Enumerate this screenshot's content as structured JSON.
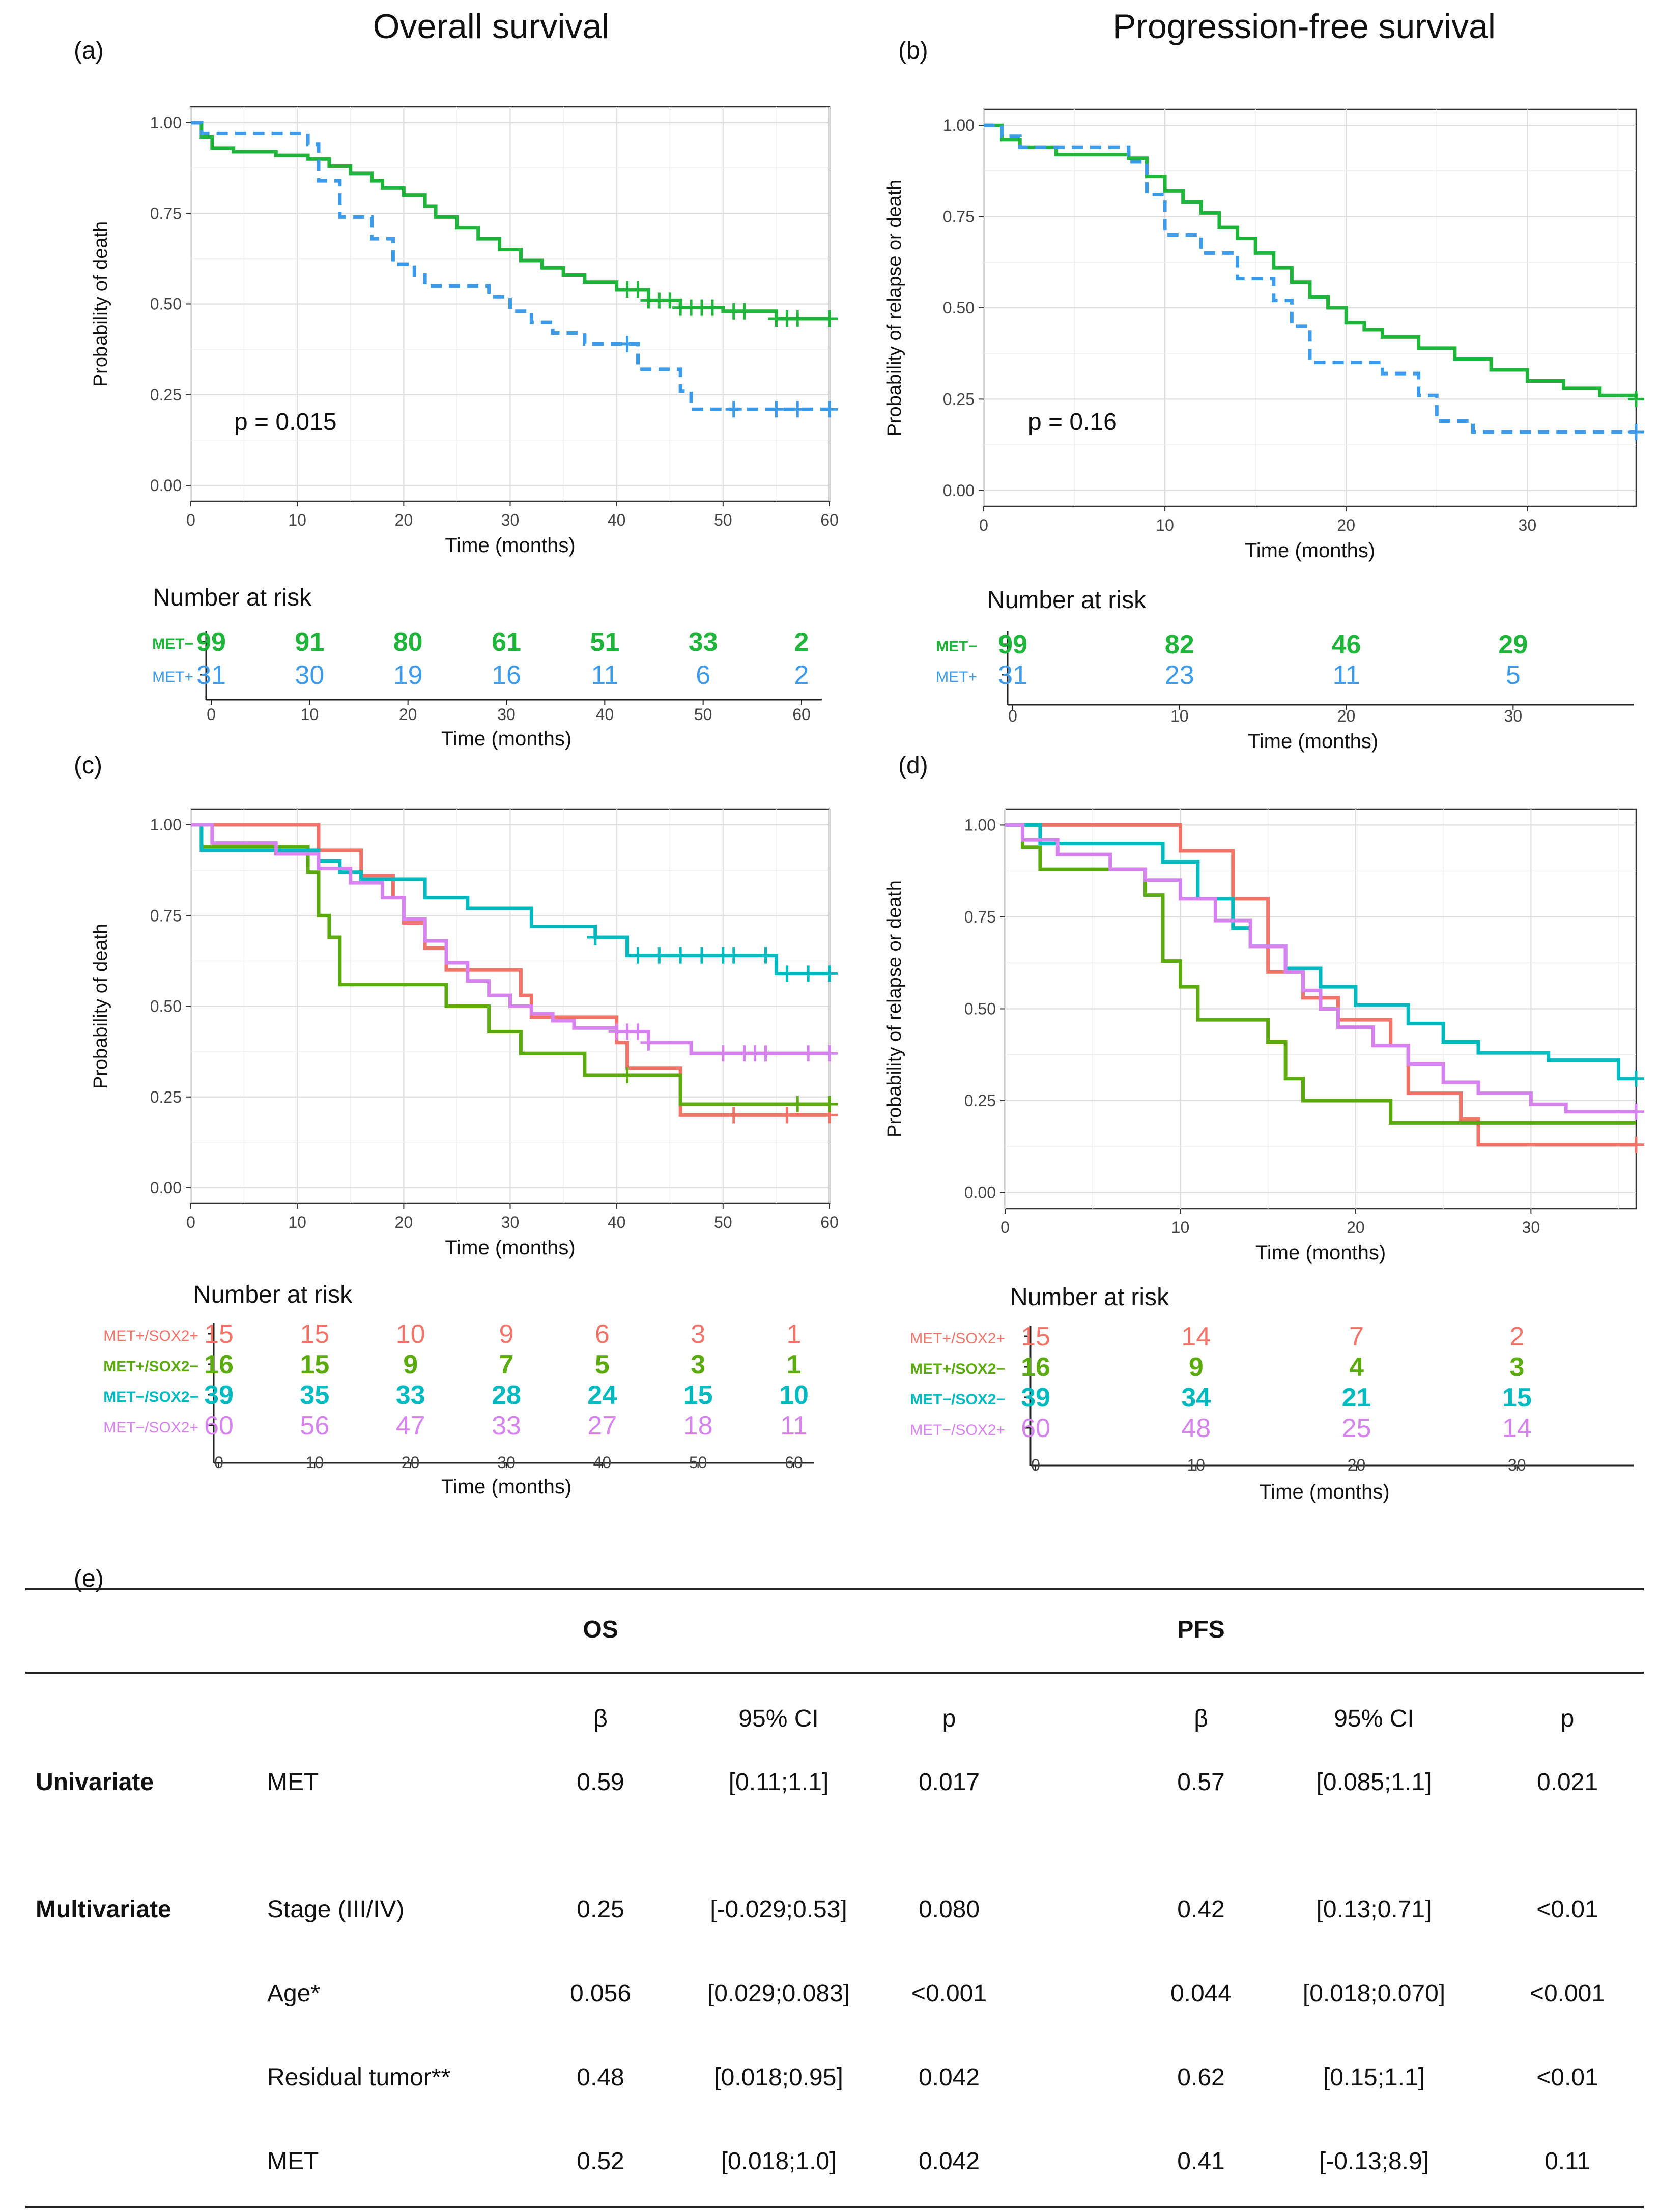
{
  "colors": {
    "met_minus": "#1FB43A",
    "met_plus": "#3D9BEB",
    "met_plus_sox2_plus": "#F27469",
    "met_plus_sox2_minus": "#5BAA0E",
    "met_minus_sox2_minus": "#00BAC0",
    "met_minus_sox2_plus": "#D683F0"
  },
  "column_titles": {
    "left": "Overall survival",
    "right": "Progression-free survival"
  },
  "chart_data": [
    {
      "panel": "(a)",
      "type": "line",
      "curve": "step",
      "title": "",
      "xlabel": "Time (months)",
      "ylabel": "Probability of death",
      "xlim": [
        0,
        60
      ],
      "ylim": [
        0,
        1
      ],
      "xticks": [
        0,
        10,
        20,
        30,
        40,
        50,
        60
      ],
      "yticks": [
        "0.00",
        "0.25",
        "0.50",
        "0.75",
        "1.00"
      ],
      "grid": true,
      "annotation": "p = 0.015",
      "series": [
        {
          "name": "MET−",
          "color_key": "met_minus",
          "dash": false,
          "x": [
            0,
            1,
            2,
            4,
            8,
            11,
            13,
            15,
            17,
            18,
            20,
            22,
            23,
            25,
            27,
            29,
            31,
            33,
            35,
            37,
            40,
            43,
            46,
            50,
            55,
            60
          ],
          "y": [
            1.0,
            0.96,
            0.93,
            0.92,
            0.91,
            0.9,
            0.88,
            0.86,
            0.84,
            0.82,
            0.8,
            0.77,
            0.74,
            0.71,
            0.68,
            0.65,
            0.62,
            0.6,
            0.58,
            0.56,
            0.54,
            0.51,
            0.49,
            0.48,
            0.46,
            0.46
          ],
          "censor_x": [
            41,
            42,
            43,
            44,
            45,
            46,
            47,
            48,
            49,
            51,
            52,
            55,
            56,
            57,
            60
          ]
        },
        {
          "name": "MET+",
          "color_key": "met_plus",
          "dash": true,
          "x": [
            0,
            1,
            11,
            12,
            14,
            17,
            19,
            21,
            22,
            28,
            30,
            32,
            34,
            37,
            42,
            46,
            47,
            60
          ],
          "y": [
            1.0,
            0.97,
            0.94,
            0.84,
            0.74,
            0.68,
            0.61,
            0.58,
            0.55,
            0.52,
            0.48,
            0.45,
            0.42,
            0.39,
            0.32,
            0.26,
            0.21,
            0.21
          ],
          "censor_x": [
            41,
            51,
            55,
            57,
            60
          ]
        }
      ]
    },
    {
      "panel": "(b)",
      "type": "line",
      "curve": "step",
      "title": "",
      "xlabel": "Time (months)",
      "ylabel": "Probability of relapse or death",
      "xlim": [
        0,
        36
      ],
      "ylim": [
        0,
        1
      ],
      "xticks": [
        0,
        10,
        20,
        30
      ],
      "yticks": [
        "0.00",
        "0.25",
        "0.50",
        "0.75",
        "1.00"
      ],
      "grid": true,
      "annotation": "p = 0.16",
      "series": [
        {
          "name": "MET−",
          "color_key": "met_minus",
          "dash": false,
          "x": [
            0,
            1,
            2,
            4,
            8,
            9,
            10,
            11,
            12,
            13,
            14,
            15,
            16,
            17,
            18,
            19,
            20,
            21,
            22,
            24,
            26,
            28,
            30,
            32,
            34,
            36
          ],
          "y": [
            1.0,
            0.96,
            0.94,
            0.92,
            0.91,
            0.86,
            0.82,
            0.79,
            0.76,
            0.72,
            0.69,
            0.65,
            0.61,
            0.57,
            0.53,
            0.5,
            0.46,
            0.44,
            0.42,
            0.39,
            0.36,
            0.33,
            0.3,
            0.28,
            0.26,
            0.25
          ],
          "censor_x": [
            36
          ]
        },
        {
          "name": "MET+",
          "color_key": "met_plus",
          "dash": true,
          "x": [
            0,
            1,
            2,
            8,
            9,
            10,
            12,
            14,
            16,
            17,
            18,
            21,
            22,
            24,
            25,
            27,
            36
          ],
          "y": [
            1.0,
            0.97,
            0.94,
            0.9,
            0.81,
            0.7,
            0.65,
            0.58,
            0.52,
            0.45,
            0.35,
            0.35,
            0.32,
            0.26,
            0.19,
            0.16,
            0.16
          ],
          "censor_x": [
            36
          ]
        }
      ]
    },
    {
      "panel": "(c)",
      "type": "line",
      "curve": "step",
      "title": "",
      "xlabel": "Time (months)",
      "ylabel": "Probability of death",
      "xlim": [
        0,
        60
      ],
      "ylim": [
        0,
        1
      ],
      "xticks": [
        0,
        10,
        20,
        30,
        40,
        50,
        60
      ],
      "yticks": [
        "0.00",
        "0.25",
        "0.50",
        "0.75",
        "1.00"
      ],
      "grid": true,
      "series": [
        {
          "name": "MET+/SOX2+",
          "color_key": "met_plus_sox2_plus",
          "dash": false,
          "x": [
            0,
            12,
            16,
            19,
            20,
            22,
            24,
            31,
            32,
            40,
            41,
            46,
            60
          ],
          "y": [
            1.0,
            0.93,
            0.86,
            0.8,
            0.73,
            0.66,
            0.6,
            0.53,
            0.47,
            0.4,
            0.33,
            0.2,
            0.2
          ],
          "censor_x": [
            51,
            56,
            60
          ]
        },
        {
          "name": "MET+/SOX2−",
          "color_key": "met_plus_sox2_minus",
          "dash": false,
          "x": [
            0,
            1,
            11,
            12,
            13,
            14,
            24,
            28,
            31,
            37,
            46,
            60
          ],
          "y": [
            1.0,
            0.94,
            0.87,
            0.75,
            0.69,
            0.56,
            0.5,
            0.43,
            0.37,
            0.31,
            0.23,
            0.23
          ],
          "censor_x": [
            41,
            57,
            60
          ]
        },
        {
          "name": "MET−/SOX2−",
          "color_key": "met_minus_sox2_minus",
          "dash": false,
          "x": [
            0,
            1,
            12,
            14,
            16,
            22,
            26,
            32,
            38,
            41,
            55,
            60
          ],
          "y": [
            1.0,
            0.93,
            0.9,
            0.87,
            0.85,
            0.8,
            0.77,
            0.72,
            0.69,
            0.64,
            0.59,
            0.59
          ],
          "censor_x": [
            38,
            42,
            44,
            46,
            48,
            50,
            51,
            54,
            56,
            58,
            60
          ]
        },
        {
          "name": "MET−/SOX2+",
          "color_key": "met_minus_sox2_plus",
          "dash": false,
          "x": [
            0,
            2,
            8,
            12,
            15,
            18,
            20,
            22,
            24,
            26,
            28,
            30,
            32,
            34,
            36,
            40,
            43,
            47,
            60
          ],
          "y": [
            1.0,
            0.95,
            0.92,
            0.88,
            0.84,
            0.8,
            0.74,
            0.68,
            0.62,
            0.57,
            0.53,
            0.5,
            0.48,
            0.46,
            0.44,
            0.43,
            0.4,
            0.37,
            0.37
          ],
          "censor_x": [
            40,
            41,
            42,
            43,
            50,
            52,
            53,
            54,
            58,
            60
          ]
        }
      ]
    },
    {
      "panel": "(d)",
      "type": "line",
      "curve": "step",
      "title": "",
      "xlabel": "Time (months)",
      "ylabel": "Probability of relapse or death",
      "xlim": [
        0,
        36
      ],
      "ylim": [
        0,
        1
      ],
      "xticks": [
        0,
        10,
        20,
        30
      ],
      "yticks": [
        "0.00",
        "0.25",
        "0.50",
        "0.75",
        "1.00"
      ],
      "grid": true,
      "series": [
        {
          "name": "MET+/SOX2+",
          "color_key": "met_plus_sox2_plus",
          "dash": false,
          "x": [
            0,
            9,
            10,
            13,
            15,
            17,
            19,
            22,
            23,
            26,
            27,
            36
          ],
          "y": [
            1.0,
            1.0,
            0.93,
            0.8,
            0.6,
            0.53,
            0.47,
            0.4,
            0.27,
            0.2,
            0.13,
            0.13
          ],
          "censor_x": [
            36
          ]
        },
        {
          "name": "MET+/SOX2−",
          "color_key": "met_plus_sox2_minus",
          "dash": false,
          "x": [
            0,
            1,
            2,
            8,
            9,
            10,
            11,
            15,
            16,
            17,
            18,
            22,
            36
          ],
          "y": [
            1.0,
            0.94,
            0.88,
            0.81,
            0.63,
            0.56,
            0.47,
            0.41,
            0.31,
            0.25,
            0.25,
            0.19,
            0.19
          ],
          "censor_x": []
        },
        {
          "name": "MET−/SOX2−",
          "color_key": "met_minus_sox2_minus",
          "dash": false,
          "x": [
            0,
            2,
            9,
            11,
            13,
            14,
            16,
            18,
            20,
            23,
            25,
            27,
            31,
            35,
            36
          ],
          "y": [
            1.0,
            0.95,
            0.9,
            0.8,
            0.72,
            0.67,
            0.61,
            0.56,
            0.51,
            0.46,
            0.41,
            0.38,
            0.36,
            0.31,
            0.31
          ],
          "censor_x": [
            36
          ]
        },
        {
          "name": "MET−/SOX2+",
          "color_key": "met_minus_sox2_plus",
          "dash": false,
          "x": [
            0,
            1,
            3,
            6,
            8,
            10,
            12,
            14,
            16,
            17,
            18,
            19,
            21,
            23,
            25,
            27,
            30,
            32,
            36
          ],
          "y": [
            1.0,
            0.96,
            0.92,
            0.88,
            0.85,
            0.8,
            0.74,
            0.67,
            0.6,
            0.55,
            0.5,
            0.45,
            0.4,
            0.35,
            0.3,
            0.27,
            0.24,
            0.22,
            0.22
          ],
          "censor_x": [
            36
          ]
        }
      ]
    }
  ],
  "risk_tables": [
    {
      "panel": "a",
      "title": "Number at risk",
      "xlabel": "Time (months)",
      "times": [
        0,
        10,
        20,
        30,
        40,
        50,
        60
      ],
      "rows": [
        {
          "label": "MET−",
          "color_key": "met_minus",
          "bold": true,
          "values": [
            "99",
            "91",
            "80",
            "61",
            "51",
            "33",
            "2"
          ]
        },
        {
          "label": "MET+",
          "color_key": "met_plus",
          "bold": false,
          "values": [
            "31",
            "30",
            "19",
            "16",
            "11",
            "6",
            "2"
          ]
        }
      ]
    },
    {
      "panel": "b",
      "title": "Number at risk",
      "xlabel": "Time (months)",
      "times": [
        0,
        10,
        20,
        30
      ],
      "rows": [
        {
          "label": "MET−",
          "color_key": "met_minus",
          "bold": true,
          "values": [
            "99",
            "82",
            "46",
            "29"
          ]
        },
        {
          "label": "MET+",
          "color_key": "met_plus",
          "bold": false,
          "values": [
            "31",
            "23",
            "11",
            "5"
          ]
        }
      ]
    },
    {
      "panel": "c",
      "title": "Number at risk",
      "xlabel": "Time (months)",
      "times": [
        0,
        10,
        20,
        30,
        40,
        50,
        60
      ],
      "rows": [
        {
          "label": "MET+/SOX2+",
          "color_key": "met_plus_sox2_plus",
          "bold": false,
          "values": [
            "15",
            "15",
            "10",
            "9",
            "6",
            "3",
            "1"
          ]
        },
        {
          "label": "MET+/SOX2−",
          "color_key": "met_plus_sox2_minus",
          "bold": true,
          "values": [
            "16",
            "15",
            "9",
            "7",
            "5",
            "3",
            "1"
          ]
        },
        {
          "label": "MET−/SOX2−",
          "color_key": "met_minus_sox2_minus",
          "bold": true,
          "values": [
            "39",
            "35",
            "33",
            "28",
            "24",
            "15",
            "10"
          ]
        },
        {
          "label": "MET−/SOX2+",
          "color_key": "met_minus_sox2_plus",
          "bold": false,
          "values": [
            "60",
            "56",
            "47",
            "33",
            "27",
            "18",
            "11"
          ]
        }
      ]
    },
    {
      "panel": "d",
      "title": "Number at risk",
      "xlabel": "Time (months)",
      "times": [
        0,
        10,
        20,
        30
      ],
      "rows": [
        {
          "label": "MET+/SOX2+",
          "color_key": "met_plus_sox2_plus",
          "bold": false,
          "values": [
            "15",
            "14",
            "7",
            "2"
          ]
        },
        {
          "label": "MET+/SOX2−",
          "color_key": "met_plus_sox2_minus",
          "bold": true,
          "values": [
            "16",
            "9",
            "4",
            "3"
          ]
        },
        {
          "label": "MET−/SOX2−",
          "color_key": "met_minus_sox2_minus",
          "bold": true,
          "values": [
            "39",
            "34",
            "21",
            "15"
          ]
        },
        {
          "label": "MET−/SOX2+",
          "color_key": "met_minus_sox2_plus",
          "bold": false,
          "values": [
            "60",
            "48",
            "25",
            "14"
          ]
        }
      ]
    }
  ],
  "table": {
    "panel": "(e)",
    "group_headers": {
      "os": "OS",
      "pfs": "PFS"
    },
    "col_headers": {
      "beta": "β",
      "ci": "95% CI",
      "p": "p"
    },
    "rows": [
      {
        "section": "Univariate",
        "variable": "MET",
        "os_beta": "0.59",
        "os_ci": "[0.11;1.1]",
        "os_p": "0.017",
        "pfs_beta": "0.57",
        "pfs_ci": "[0.085;1.1]",
        "pfs_p": "0.021"
      },
      {
        "section": "Multivariate",
        "variable": "Stage (III/IV)",
        "os_beta": "0.25",
        "os_ci": "[-0.029;0.53]",
        "os_p": "0.080",
        "pfs_beta": "0.42",
        "pfs_ci": "[0.13;0.71]",
        "pfs_p": "<0.01"
      },
      {
        "section": "",
        "variable": "Age*",
        "os_beta": "0.056",
        "os_ci": "[0.029;0.083]",
        "os_p": "<0.001",
        "pfs_beta": "0.044",
        "pfs_ci": "[0.018;0.070]",
        "pfs_p": "<0.001"
      },
      {
        "section": "",
        "variable": "Residual tumor**",
        "os_beta": "0.48",
        "os_ci": "[0.018;0.95]",
        "os_p": "0.042",
        "pfs_beta": "0.62",
        "pfs_ci": "[0.15;1.1]",
        "pfs_p": "<0.01"
      },
      {
        "section": "",
        "variable": "MET",
        "os_beta": "0.52",
        "os_ci": "[0.018;1.0]",
        "os_p": "0.042",
        "pfs_beta": "0.41",
        "pfs_ci": "[-0.13;8.9]",
        "pfs_p": "0.11"
      }
    ]
  }
}
